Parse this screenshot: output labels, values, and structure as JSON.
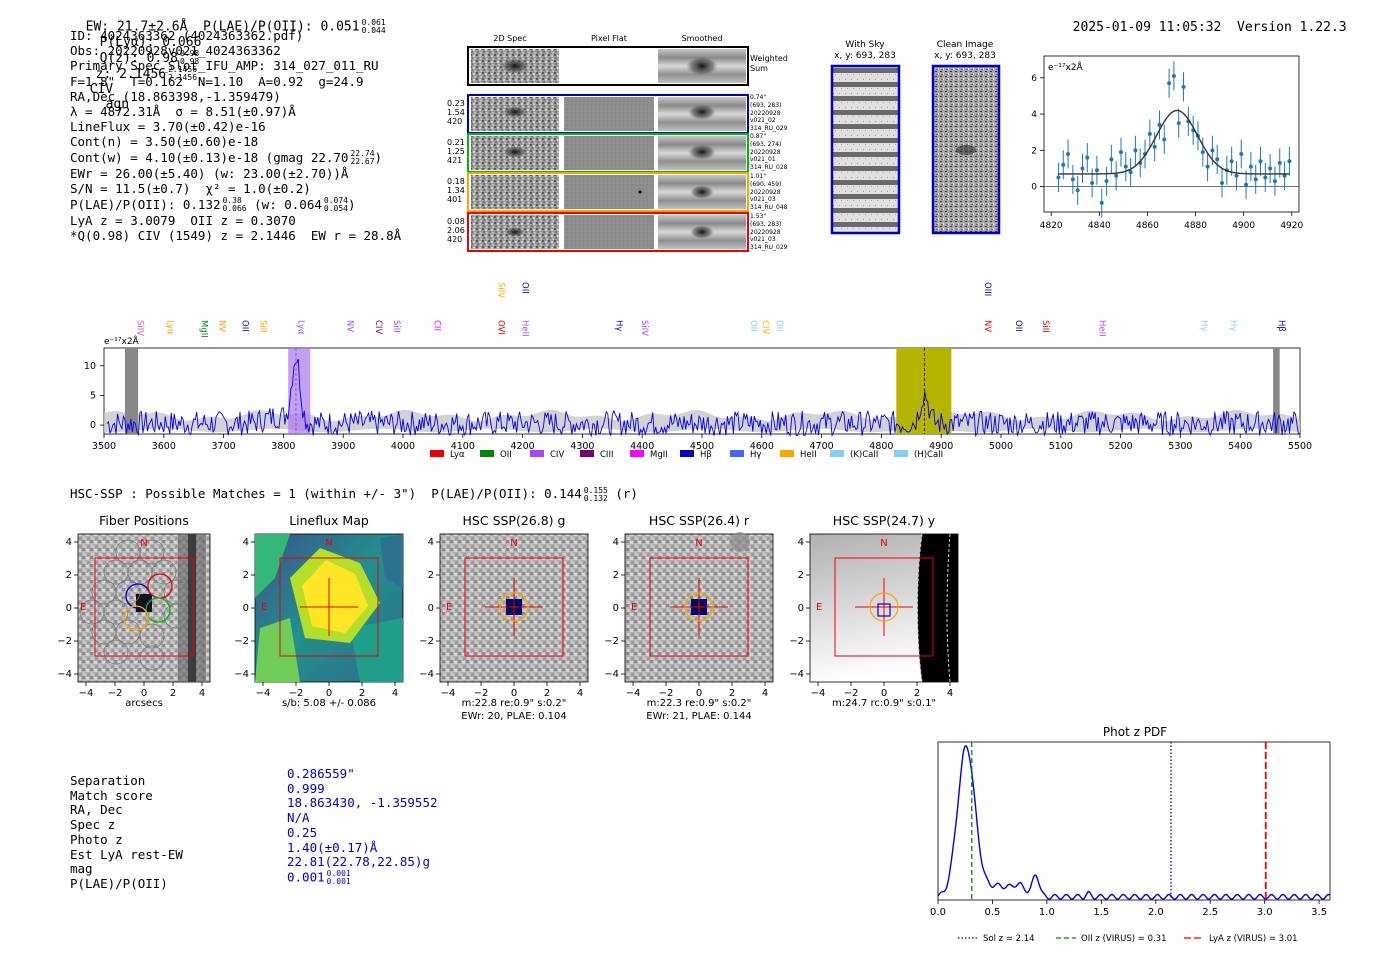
{
  "header": {
    "line": "EW: 21.7±2.6Å  P(LAE)/P(OII): 0.051",
    "plae_hi": "0.061",
    "plae_lo": "0.044",
    "plya": "P(Lyα): 0.066",
    "qz": "Q(z): 0.98",
    "qz_hi": "0.98",
    "qz_lo": "0.98",
    "z": "z: 2.1456",
    "z_hi": "2.1456",
    "z_lo": "2.1456",
    "line_id": "CIV",
    "cls": "agn",
    "datetime": "2025-01-09 11:05:32",
    "version": "Version 1.22.3"
  },
  "info": {
    "id": "ID: 4024363362 (4024363362.pdf)",
    "obs": "Obs: 20220928v021_4024363362",
    "primary": "Primary Spec_Slot_IFU_AMP: 314_027_011_RU",
    "fparams": "F=1.8\"  T=0.162  N=1.10  A=0.92  g=24.9",
    "radec": "RA,Dec (18.863398,-1.359479)",
    "lambda": "λ = 4872.31Å  σ = 8.51(±0.97)Å",
    "lineflux": "LineFlux = 3.70(±0.42)e-16",
    "contn": "Cont(n) = 3.50(±0.60)e-18",
    "contw": "Cont(w) = 4.10(±0.13)e-18 (gmag 22.70",
    "gmag_hi": "22.74",
    "gmag_lo": "22.67",
    "ewr": "EWr = 26.00(±5.40) (w: 23.00(±2.70))Å",
    "sn": "S/N = 11.5(±0.7)  χ² = 1.0(±0.2)",
    "plae": "P(LAE)/P(OII): 0.132",
    "plae_hi": "0.38",
    "plae_lo": "0.066",
    "plae_w": "(w: 0.064",
    "plae_w_hi": "0.074",
    "plae_w_lo": "0.054",
    "lya": "LyA z = 3.0079  OII z = 0.3070",
    "q": "*Q(0.98) CIV (1549) z = 2.1446  EW r = 28.8Å"
  },
  "cutouts": {
    "col_titles": [
      "2D Spec",
      "Pixel Flat",
      "Smoothed"
    ],
    "weighted": [
      "Weighted",
      "Sum"
    ],
    "rows": [
      {
        "left": [
          "0.23",
          "1.54",
          "420"
        ],
        "right": [
          "0.74\"",
          "(693, 283)",
          "20220928",
          "v021_02",
          "314_RU_029"
        ],
        "color": "#0000cc"
      },
      {
        "left": [
          "0.21",
          "1.25",
          "421"
        ],
        "right": [
          "0.87\"",
          "(693, 274)",
          "20220928",
          "v021_01",
          "314_RU_028"
        ],
        "color": "#00bb00"
      },
      {
        "left": [
          "0.18",
          "1.34",
          "401"
        ],
        "right": [
          "1.01\"",
          "(690, 459)",
          "20220928",
          "v021_03",
          "314_RU_048"
        ],
        "color": "#ffa500"
      },
      {
        "left": [
          "0.08",
          "2.06",
          "420"
        ],
        "right": [
          "1.53\"",
          "(693, 283)",
          "20220928",
          "v021_03",
          "314_RU_029"
        ],
        "color": "#ee0000"
      }
    ],
    "with_sky": [
      "With Sky",
      "x, y: 693, 283"
    ],
    "clean": [
      "Clean Image",
      "x, y: 693, 283"
    ]
  },
  "zoom_plot": {
    "unit": "e⁻¹⁷x2Å",
    "xticks": [
      "4820",
      "4840",
      "4860",
      "4880",
      "4900",
      "4920"
    ],
    "yticks": [
      "0",
      "2",
      "4",
      "6"
    ],
    "xlim": [
      4817,
      4923
    ],
    "ylim": [
      -1.4,
      7.2
    ],
    "points": [
      [
        4823,
        0.5
      ],
      [
        4825,
        1.2
      ],
      [
        4827,
        1.8
      ],
      [
        4829,
        0.4
      ],
      [
        4831,
        -0.2
      ],
      [
        4833,
        1.0
      ],
      [
        4835,
        1.6
      ],
      [
        4837,
        0.2
      ],
      [
        4839,
        0.9
      ],
      [
        4841,
        -0.9
      ],
      [
        4843,
        0.3
      ],
      [
        4845,
        1.5
      ],
      [
        4847,
        0.6
      ],
      [
        4849,
        1.9
      ],
      [
        4851,
        1.1
      ],
      [
        4853,
        0.8
      ],
      [
        4855,
        2.0
      ],
      [
        4857,
        1.3
      ],
      [
        4859,
        1.8
      ],
      [
        4861,
        2.9
      ],
      [
        4863,
        2.2
      ],
      [
        4865,
        3.4
      ],
      [
        4867,
        2.6
      ],
      [
        4869,
        5.7
      ],
      [
        4871,
        6.1
      ],
      [
        4873,
        3.5
      ],
      [
        4875,
        5.5
      ],
      [
        4877,
        3.6
      ],
      [
        4879,
        3.1
      ],
      [
        4881,
        2.8
      ],
      [
        4883,
        1.9
      ],
      [
        4885,
        1.1
      ],
      [
        4887,
        2.0
      ],
      [
        4889,
        1.5
      ],
      [
        4891,
        0.2
      ],
      [
        4893,
        0.9
      ],
      [
        4895,
        1.4
      ],
      [
        4897,
        0.6
      ],
      [
        4899,
        1.8
      ],
      [
        4901,
        0.1
      ],
      [
        4903,
        1.1
      ],
      [
        4905,
        0.4
      ],
      [
        4907,
        1.4
      ],
      [
        4909,
        0.5
      ],
      [
        4911,
        1.0
      ],
      [
        4913,
        0.3
      ],
      [
        4915,
        1.3
      ],
      [
        4917,
        0.6
      ],
      [
        4919,
        1.4
      ]
    ]
  },
  "spectrum": {
    "unit": "e⁻¹⁷x2Å",
    "xticks": [
      "3500",
      "3600",
      "3700",
      "3800",
      "3900",
      "4000",
      "4100",
      "4200",
      "4300",
      "4400",
      "4500",
      "4600",
      "4700",
      "4800",
      "4900",
      "5000",
      "5100",
      "5200",
      "5300",
      "5400",
      "5500"
    ],
    "yticks": [
      "0",
      "5",
      "10"
    ],
    "xlim": [
      3500,
      5500
    ],
    "ylim": [
      -1.5,
      13
    ],
    "band_purple": [
      3808,
      3845
    ],
    "band_olive": [
      4825,
      4917
    ],
    "vline": 4872,
    "line_labels": [
      {
        "t": "SiIV",
        "w": 3551,
        "c": "#cc55cc",
        "row": 1
      },
      {
        "t": "Lyα",
        "w": 3601,
        "c": "#ff9900",
        "row": 1
      },
      {
        "t": "MgII",
        "w": 3658,
        "c": "#008800",
        "row": 1
      },
      {
        "t": "NV",
        "w": 3688,
        "c": "#ff9900",
        "row": 1
      },
      {
        "t": "OII",
        "w": 3727,
        "c": "#0000cc",
        "row": 1
      },
      {
        "t": "SiII",
        "w": 3757,
        "c": "#ffaa00",
        "row": 1
      },
      {
        "t": "Lyα",
        "w": 3820,
        "c": "#aa44ff",
        "row": 1
      },
      {
        "t": "NV",
        "w": 3902,
        "c": "#aa44ff",
        "row": 1
      },
      {
        "t": "CIV",
        "w": 3950,
        "c": "#770077",
        "row": 1
      },
      {
        "t": "SiII",
        "w": 3980,
        "c": "#aa44ff",
        "row": 1
      },
      {
        "t": "CII",
        "w": 4048,
        "c": "#ff00ff",
        "row": 1
      },
      {
        "t": "OVI",
        "w": 4155,
        "c": "#ee0000",
        "row": 1
      },
      {
        "t": "HeII",
        "w": 4195,
        "c": "#aa44ff",
        "row": 1
      },
      {
        "t": "SiIV",
        "w": 4155,
        "c": "#ffaa00",
        "row": 0
      },
      {
        "t": "OII",
        "w": 4195,
        "c": "#0000cc",
        "row": 0
      },
      {
        "t": "Hγ",
        "w": 4352,
        "c": "#0000cc",
        "row": 1
      },
      {
        "t": "SiIV",
        "w": 4395,
        "c": "#aa44ff",
        "row": 1
      },
      {
        "t": "OII",
        "w": 4577,
        "c": "#88ccff",
        "row": 1
      },
      {
        "t": "CIV",
        "w": 4597,
        "c": "#ffaa00",
        "row": 1
      },
      {
        "t": "OII",
        "w": 4620,
        "c": "#88ccff",
        "row": 1
      },
      {
        "t": "OIII",
        "w": 4968,
        "c": "#0000cc",
        "row": 0
      },
      {
        "t": "NV",
        "w": 4968,
        "c": "#ee0000",
        "row": 1
      },
      {
        "t": "OII",
        "w": 5020,
        "c": "#0000cc",
        "row": 1
      },
      {
        "t": "SiII",
        "w": 5065,
        "c": "#ee0000",
        "row": 1
      },
      {
        "t": "HeII",
        "w": 5160,
        "c": "#aa44ff",
        "row": 1
      },
      {
        "t": "Hγ",
        "w": 5330,
        "c": "#88ccff",
        "row": 1
      },
      {
        "t": "Hγ",
        "w": 5380,
        "c": "#88ccff",
        "row": 1
      },
      {
        "t": "Hβ",
        "w": 5460,
        "c": "#0000cc",
        "row": 1
      }
    ],
    "legend": [
      {
        "t": "Lyα",
        "c": "#ee0000"
      },
      {
        "t": "OII",
        "c": "#008800"
      },
      {
        "t": "CIV",
        "c": "#aa44ff"
      },
      {
        "t": "CIII",
        "c": "#770077"
      },
      {
        "t": "MgII",
        "c": "#ff00ff"
      },
      {
        "t": "Hβ",
        "c": "#0000cc"
      },
      {
        "t": "Hγ",
        "c": "#4466ff"
      },
      {
        "t": "HeII",
        "c": "#ffa500"
      },
      {
        "t": "(K)CaII",
        "c": "#88ccee"
      },
      {
        "t": "(H)CaII",
        "c": "#88ccee"
      }
    ]
  },
  "hsc": {
    "title": "HSC-SSP : Possible Matches = 1 (within +/- 3\")  P(LAE)/P(OII): 0.144",
    "hi": "0.155",
    "lo": "0.132",
    "suffix": "(r)",
    "panels": [
      {
        "title": "Fiber Positions",
        "cap1": "arcsecs",
        "cap2": ""
      },
      {
        "title": "Lineflux Map",
        "cap1": "s/b: 5.08 +/- 0.086",
        "cap2": ""
      },
      {
        "title": "HSC SSP(26.8) g",
        "cap1": "m:22.8  re:0.9\"  s:0.2\"",
        "cap2": "EWr: 20, PLAE: 0.104"
      },
      {
        "title": "HSC SSP(26.4) r",
        "cap1": "m:22.3  re:0.9\"  s:0.2\"",
        "cap2": "EWr: 21, PLAE: 0.144"
      },
      {
        "title": "HSC SSP(24.7) y",
        "cap1": "m:24.7 rc:0.9\"  s:0.1\"",
        "cap2": ""
      }
    ],
    "ticks": [
      "−4",
      "−2",
      "0",
      "2",
      "4"
    ],
    "north": "N",
    "east": "E"
  },
  "table": {
    "labels": [
      "Separation",
      "Match score",
      "RA, Dec",
      "Spec z",
      "Photo z",
      "Est LyA rest-EW",
      "mag",
      "P(LAE)/P(OII)"
    ],
    "values": [
      "0.286559\"",
      "0.999",
      "18.863430, -1.359552",
      "N/A",
      "0.25",
      "1.40(±0.17)Å",
      "22.81(22.78,22.85)g",
      "0.001"
    ],
    "plae_hi": "0.001",
    "plae_lo": "0.001"
  },
  "photz": {
    "title": "Phot z PDF",
    "xticks": [
      "0.0",
      "0.5",
      "1.0",
      "1.5",
      "2.0",
      "2.5",
      "3.0",
      "3.5"
    ],
    "xlim": [
      0,
      3.6
    ],
    "sol_z": 2.14,
    "oii_z": 0.31,
    "lya_z": 3.01,
    "legend": [
      "Sol z = 2.14",
      "OII z (VIRUS) = 0.31",
      "LyA z (VIRUS) = 3.01"
    ]
  }
}
